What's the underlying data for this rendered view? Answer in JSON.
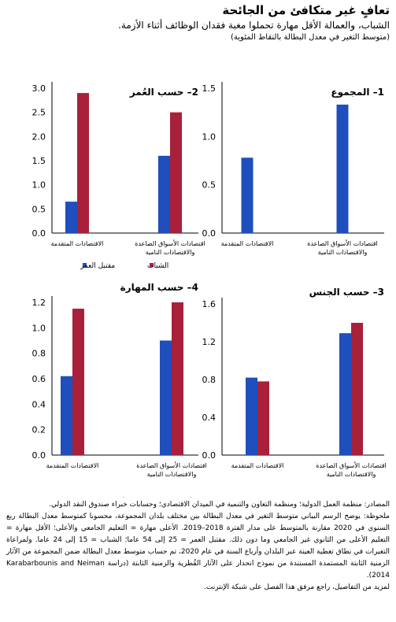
{
  "title": "تعافٍ غير متكافئ من الجائحة",
  "subtitle": "الشباب، والعمالة الأقل مهارة تحملوا مغبة فقدان الوظائف أثناء الأزمة.",
  "unit_note": "(متوسط التغير في معدل البطالة بالنقاط المئوية)",
  "colors": {
    "blue": "#1F4EBD",
    "red": "#A8203A"
  },
  "chart_data": [
    {
      "panel": "1",
      "type": "bar",
      "title": "المجموع",
      "categories": [
        "الاقتصادات المتقدمة",
        "اقتصادات الأسواق الصاعدة والاقتصادات النامية"
      ],
      "series": [
        {
          "values": [
            0.78,
            1.33
          ],
          "color": "#1F4EBD"
        }
      ],
      "ylim": [
        0,
        1.5
      ],
      "yticks": [
        "1.5",
        "1.0",
        "0.5",
        "0.0"
      ],
      "legend": []
    },
    {
      "panel": "2",
      "type": "bar",
      "title": "حسب العُمر",
      "categories": [
        "الاقتصادات المتقدمة",
        "اقتصادات الأسواق الصاعدة والاقتصادات النامية"
      ],
      "series": [
        {
          "name": "مقتبل العمر",
          "values": [
            0.65,
            1.6
          ],
          "color": "#1F4EBD"
        },
        {
          "name": "الشباب",
          "values": [
            2.9,
            2.5
          ],
          "color": "#A8203A"
        }
      ],
      "ylim": [
        0,
        3.0
      ],
      "yticks": [
        "3.0",
        "2.5",
        "2.0",
        "1.5",
        "1.0",
        "0.5",
        "0.0"
      ],
      "legend": [
        "الشباب",
        "مقتبل العمر"
      ]
    },
    {
      "panel": "3",
      "type": "bar",
      "title": "حسب الجنس",
      "categories": [
        "الاقتصادات المتقدمة",
        "اقتصادات الأسواق الصاعدة والاقتصادات النامية"
      ],
      "series": [
        {
          "name": "الرجال",
          "values": [
            0.82,
            1.29
          ],
          "color": "#1F4EBD"
        },
        {
          "name": "النساء",
          "values": [
            0.78,
            1.4
          ],
          "color": "#A8203A"
        }
      ],
      "ylim": [
        0,
        1.6
      ],
      "yticks": [
        "1.6",
        "1.2",
        "0.8",
        "0.4",
        "0.0"
      ],
      "legend": [
        "النساء",
        "الرجال"
      ]
    },
    {
      "panel": "4",
      "type": "bar",
      "title": "حسب المهارة",
      "categories": [
        "الاقتصادات المتقدمة",
        "اقتصادات الأسواق الصاعدة والاقتصادات النامية"
      ],
      "series": [
        {
          "name": "الأعلى مهارة",
          "values": [
            0.62,
            0.9
          ],
          "color": "#1F4EBD"
        },
        {
          "name": "الأقل مهارة",
          "values": [
            1.15,
            1.2
          ],
          "color": "#A8203A"
        }
      ],
      "ylim": [
        0,
        1.2
      ],
      "yticks": [
        "1.2",
        "1.0",
        "0.8",
        "0.6",
        "0.4",
        "0.2",
        "0.0"
      ],
      "legend": [
        "الأقل مهارة",
        "الأعلى مهارة"
      ]
    }
  ],
  "notes": {
    "sources": "المصادر: منظمة العمل الدولية؛ ومنظمة التعاون والتنمية في الميدان الاقتصادي؛ وحسابات خبراء صندوق النقد الدولي.",
    "note": "ملحوظة: يوضح الرسم البياني متوسط التغير في معدل البطالة بين مختلف بلدان المجموعة، محسوبا كمتوسط معدل البطالة ربع السنوي في 2020 مقارنة بالمتوسط على مدار الفترة 2018–2019. الأعلى مهارة = التعليم الجامعي والأعلى؛ الأقل مهارة = التعليم الأعلى من الثانوي غير الجامعي وما دون ذلك. مقتبل العمر = 25 إلى 54 عاما؛ الشباب = 15 إلى 24 عاما. ولمراعاة التغيرات في نطاق تغطية العينة عبر البلدان وأرباع السنة في عام 2020، تم حساب متوسط معدل البطالة ضمن المجموعة من الآثار الزمنية الثابتة المستمدة المستندة من نموذج انحدار على الآثار القُطرية والزمنية الثابتة (دراسة Karabarbounis and Neiman 2014).",
    "more": "لمزيد من التفاصيل، راجع مرفق هذا الفصل على شبكة الإنترنت."
  }
}
